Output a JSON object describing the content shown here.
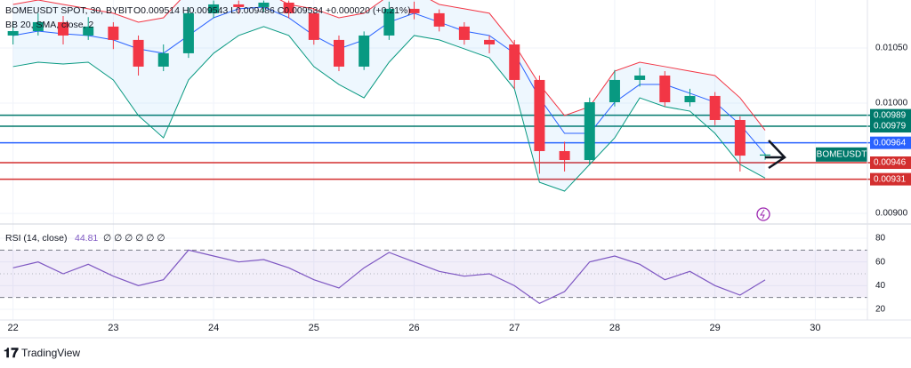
{
  "chart_data": [
    {
      "type": "candlestick",
      "title": "BOMEUSDT SPOT, 30, BYBIT",
      "subtitle": "O0.009514 H0.009543 L0.009486 C0.009534 +0.000020 (+0.21%)",
      "x": [
        22,
        22.25,
        22.5,
        22.75,
        23,
        23.25,
        23.5,
        23.75,
        24,
        24.25,
        24.5,
        24.75,
        25,
        25.25,
        25.5,
        25.75,
        26,
        26.25,
        26.5,
        26.75,
        27,
        27.25,
        27.5,
        27.75,
        28,
        28.25,
        28.5,
        28.75,
        29,
        29.25,
        29.5
      ],
      "open": [
        0.010613,
        0.010653,
        0.010734,
        0.010613,
        0.010694,
        0.010573,
        0.010331,
        0.010452,
        0.010815,
        0.010895,
        0.010871,
        0.010911,
        0.010815,
        0.010573,
        0.010331,
        0.010613,
        0.010855,
        0.010815,
        0.010694,
        0.010573,
        0.010532,
        0.01021,
        0.009565,
        0.009484,
        0.010008,
        0.01021,
        0.01025,
        0.010008,
        0.010065,
        0.009847,
        0.009524
      ],
      "high": [
        0.010734,
        0.010815,
        0.01079,
        0.01078,
        0.010734,
        0.010613,
        0.010532,
        0.01087,
        0.01093,
        0.01093,
        0.01093,
        0.01093,
        0.010855,
        0.010613,
        0.01065,
        0.01092,
        0.01092,
        0.01085,
        0.010734,
        0.010613,
        0.010573,
        0.01025,
        0.00965,
        0.01005,
        0.0103,
        0.01032,
        0.01029,
        0.01013,
        0.0101,
        0.00988,
        0.009543
      ],
      "low": [
        0.010532,
        0.010613,
        0.010532,
        0.010573,
        0.01049,
        0.01025,
        0.01029,
        0.01041,
        0.01077,
        0.01081,
        0.01083,
        0.01077,
        0.01053,
        0.01029,
        0.0103,
        0.010573,
        0.01076,
        0.01065,
        0.01053,
        0.010452,
        0.01013,
        0.00936,
        0.00938,
        0.00944,
        0.00997,
        0.01015,
        0.00997,
        0.00997,
        0.0098,
        0.00938,
        0.009486
      ],
      "close": [
        0.010653,
        0.010734,
        0.010613,
        0.010694,
        0.010573,
        0.010331,
        0.010452,
        0.010815,
        0.010895,
        0.010871,
        0.010911,
        0.010815,
        0.010573,
        0.010331,
        0.010613,
        0.010855,
        0.010815,
        0.010694,
        0.010573,
        0.010532,
        0.01021,
        0.009565,
        0.009484,
        0.010008,
        0.01021,
        0.01025,
        0.010008,
        0.010065,
        0.009847,
        0.009524,
        0.009534
      ],
      "up_color": "#089981",
      "down_color": "#f23645",
      "bollinger": {
        "label": "BB 20, SMA, close, 2",
        "basis_color": "#2962ff",
        "band_color": "#f23645",
        "lower_color": "#089981",
        "fill": "#2196f3",
        "basis": [
          0.010613,
          0.010653,
          0.010629,
          0.010613,
          0.010573,
          0.010492,
          0.010452,
          0.010613,
          0.010774,
          0.010855,
          0.010871,
          0.010774,
          0.010613,
          0.010492,
          0.010573,
          0.010734,
          0.010815,
          0.010734,
          0.010653,
          0.010613,
          0.010452,
          0.010048,
          0.009726,
          0.009726,
          0.010008,
          0.010169,
          0.010169,
          0.010089,
          0.010008,
          0.009806,
          0.009537
        ],
        "upper": [
          0.010895,
          0.010935,
          0.010895,
          0.010855,
          0.010815,
          0.010734,
          0.010774,
          0.011016,
          0.011097,
          0.011056,
          0.011016,
          0.010895,
          0.010855,
          0.010774,
          0.010815,
          0.010976,
          0.011016,
          0.010895,
          0.010855,
          0.010815,
          0.010532,
          0.010169,
          0.009887,
          0.009968,
          0.01029,
          0.010371,
          0.010331,
          0.01029,
          0.01025,
          0.010048,
          0.009754
        ],
        "lower": [
          0.010331,
          0.010371,
          0.010355,
          0.010371,
          0.01021,
          0.009887,
          0.009685,
          0.01021,
          0.010452,
          0.010613,
          0.010694,
          0.010613,
          0.010331,
          0.010169,
          0.010048,
          0.010371,
          0.010613,
          0.010573,
          0.010492,
          0.010411,
          0.010129,
          0.009282,
          0.009202,
          0.009444,
          0.009685,
          0.010048,
          0.009968,
          0.009927,
          0.009726,
          0.009444,
          0.00932
        ]
      },
      "levels": [
        {
          "value": 0.00989,
          "color": "#00796b"
        },
        {
          "value": 0.00979,
          "color": "#00796b"
        },
        {
          "value": 0.00964,
          "color": "#2962ff"
        },
        {
          "value": 0.00946,
          "color": "#d32f2f"
        },
        {
          "value": 0.00931,
          "color": "#d32f2f"
        }
      ],
      "tag": "BOMEUSDT",
      "xlim": [
        21.87,
        30.52
      ],
      "xticks": [
        22,
        23,
        24,
        25,
        26,
        27,
        28,
        29,
        30
      ],
      "ylim": [
        0.00892,
        0.010935
      ],
      "yticks": [
        {
          "value": 0.009,
          "label": "0.00900"
        },
        {
          "value": 0.01,
          "label": "0.01000"
        },
        {
          "value": 0.0105,
          "label": "0.01050"
        }
      ],
      "grid": true
    },
    {
      "type": "line",
      "title": "RSI (14, close)",
      "subtitle": "∅ ∅ ∅ ∅ ∅ ∅",
      "color": "#7e57c2",
      "x": [
        22,
        22.25,
        22.5,
        22.75,
        23,
        23.25,
        23.5,
        23.75,
        24,
        24.25,
        24.5,
        24.75,
        25,
        25.25,
        25.5,
        25.75,
        26,
        26.25,
        26.5,
        26.75,
        27,
        27.25,
        27.5,
        27.75,
        28,
        28.25,
        28.5,
        28.75,
        29,
        29.25,
        29.5
      ],
      "values": [
        55,
        60,
        50,
        58,
        48,
        40,
        45,
        70,
        65,
        60,
        62,
        55,
        45,
        38,
        55,
        68,
        60,
        52,
        48,
        50,
        40,
        25,
        35,
        60,
        65,
        58,
        45,
        52,
        40,
        32,
        44.81
      ],
      "band": [
        30,
        70
      ],
      "midline": 50,
      "xlim": [
        21.87,
        30.52
      ],
      "ylim": [
        11,
        89.75
      ],
      "yticks": [
        20,
        40,
        60,
        80
      ],
      "grid": true
    }
  ],
  "footer": {
    "brand": "TradingView"
  }
}
